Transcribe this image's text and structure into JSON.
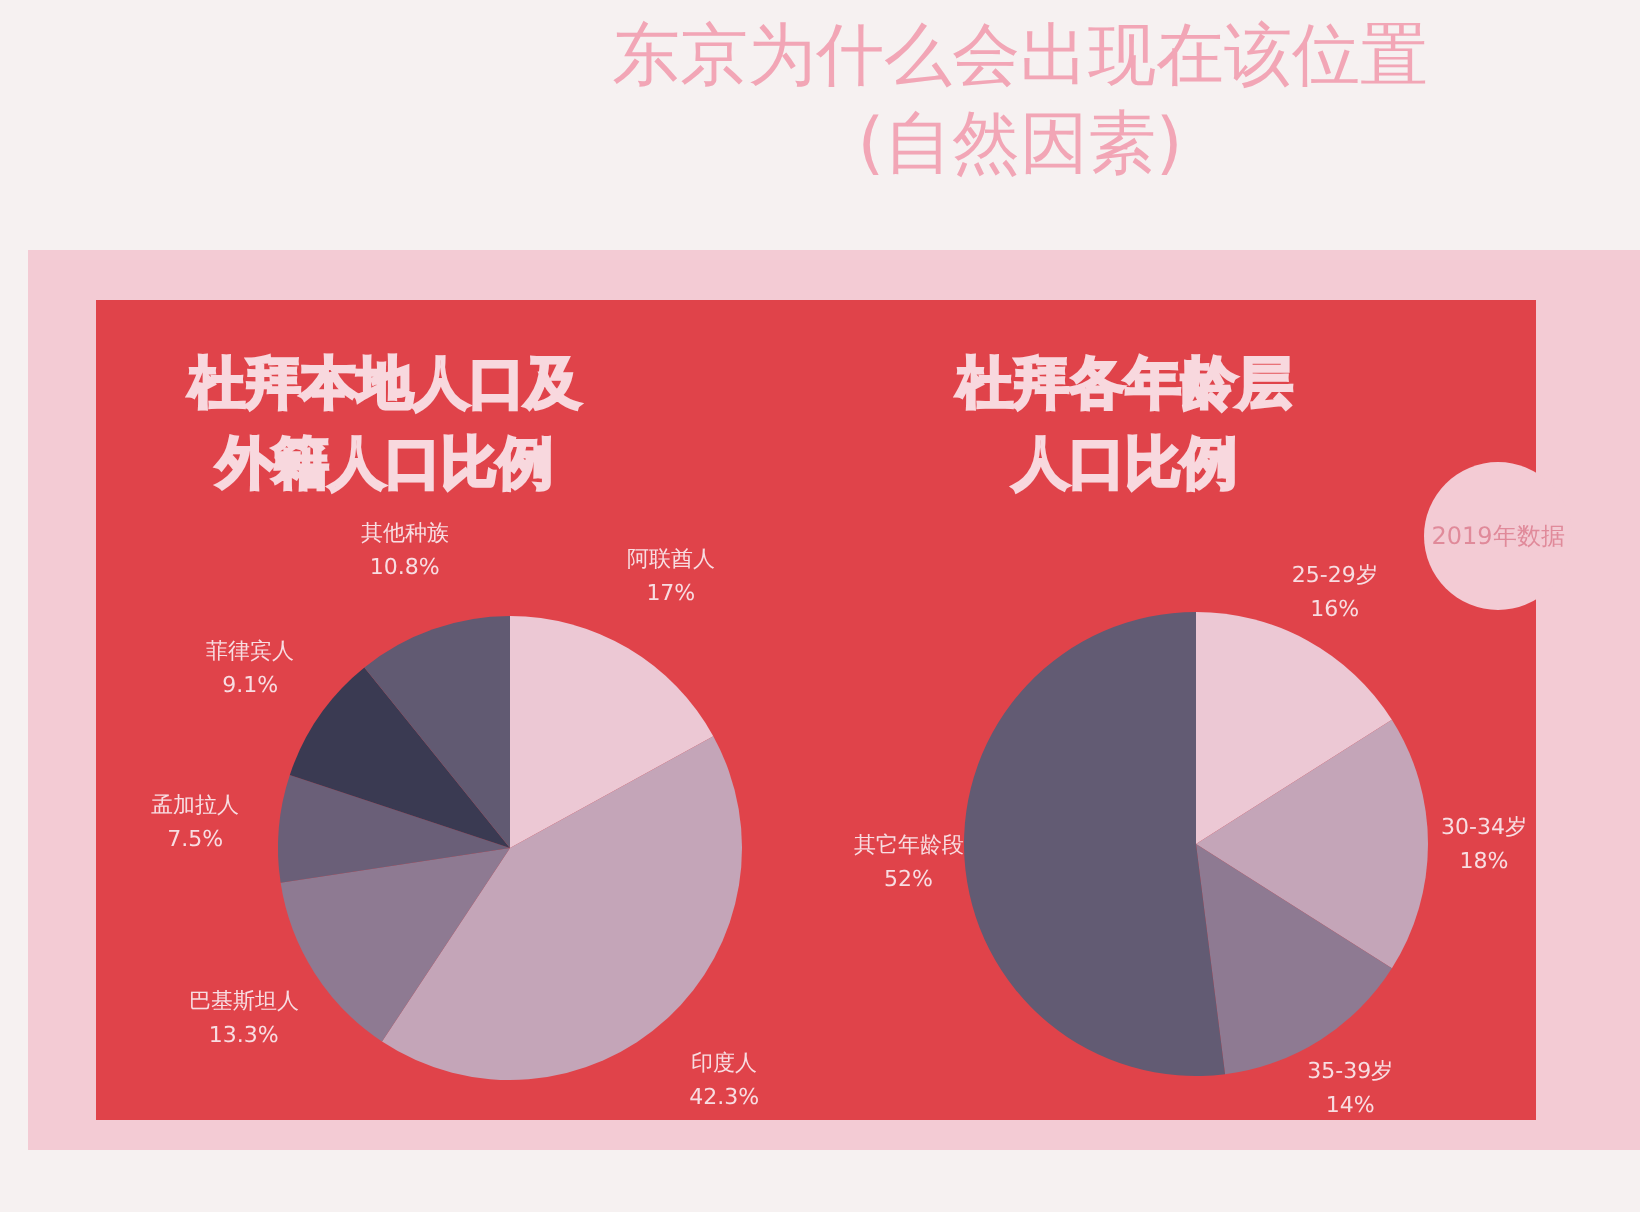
{
  "chart_data": [
    {
      "type": "pie",
      "title": "杜拜本地人口及外籍人口比例",
      "annotations": [
        "东京为什么会出现在该位置",
        "(自然因素)"
      ],
      "categories": [
        "阿联酋人",
        "印度人",
        "巴基斯坦人",
        "孟加拉人",
        "菲律宾人",
        "其他种族"
      ],
      "values": [
        17,
        42.3,
        13.3,
        7.5,
        9.1,
        10.8
      ],
      "value_labels": [
        "17%",
        "42.3%",
        "13.3%",
        "7.5%",
        "9.1%",
        "10.8%"
      ],
      "colors": [
        "#ecc8d4",
        "#c4a5b8",
        "#8e7a92",
        "#6a5f78",
        "#3a3a52",
        "#615a72"
      ]
    },
    {
      "type": "pie",
      "title": "杜拜各年龄层人口比例",
      "annotations": [
        "2019年数据"
      ],
      "categories": [
        "25-29岁",
        "30-34岁",
        "35-39岁",
        "其它年龄段"
      ],
      "values": [
        16,
        18,
        14,
        52
      ],
      "value_labels": [
        "16%",
        "18%",
        "14%",
        "52%"
      ],
      "colors": [
        "#ecc8d4",
        "#c4a5b8",
        "#8e7a92",
        "#625b73"
      ]
    }
  ]
}
